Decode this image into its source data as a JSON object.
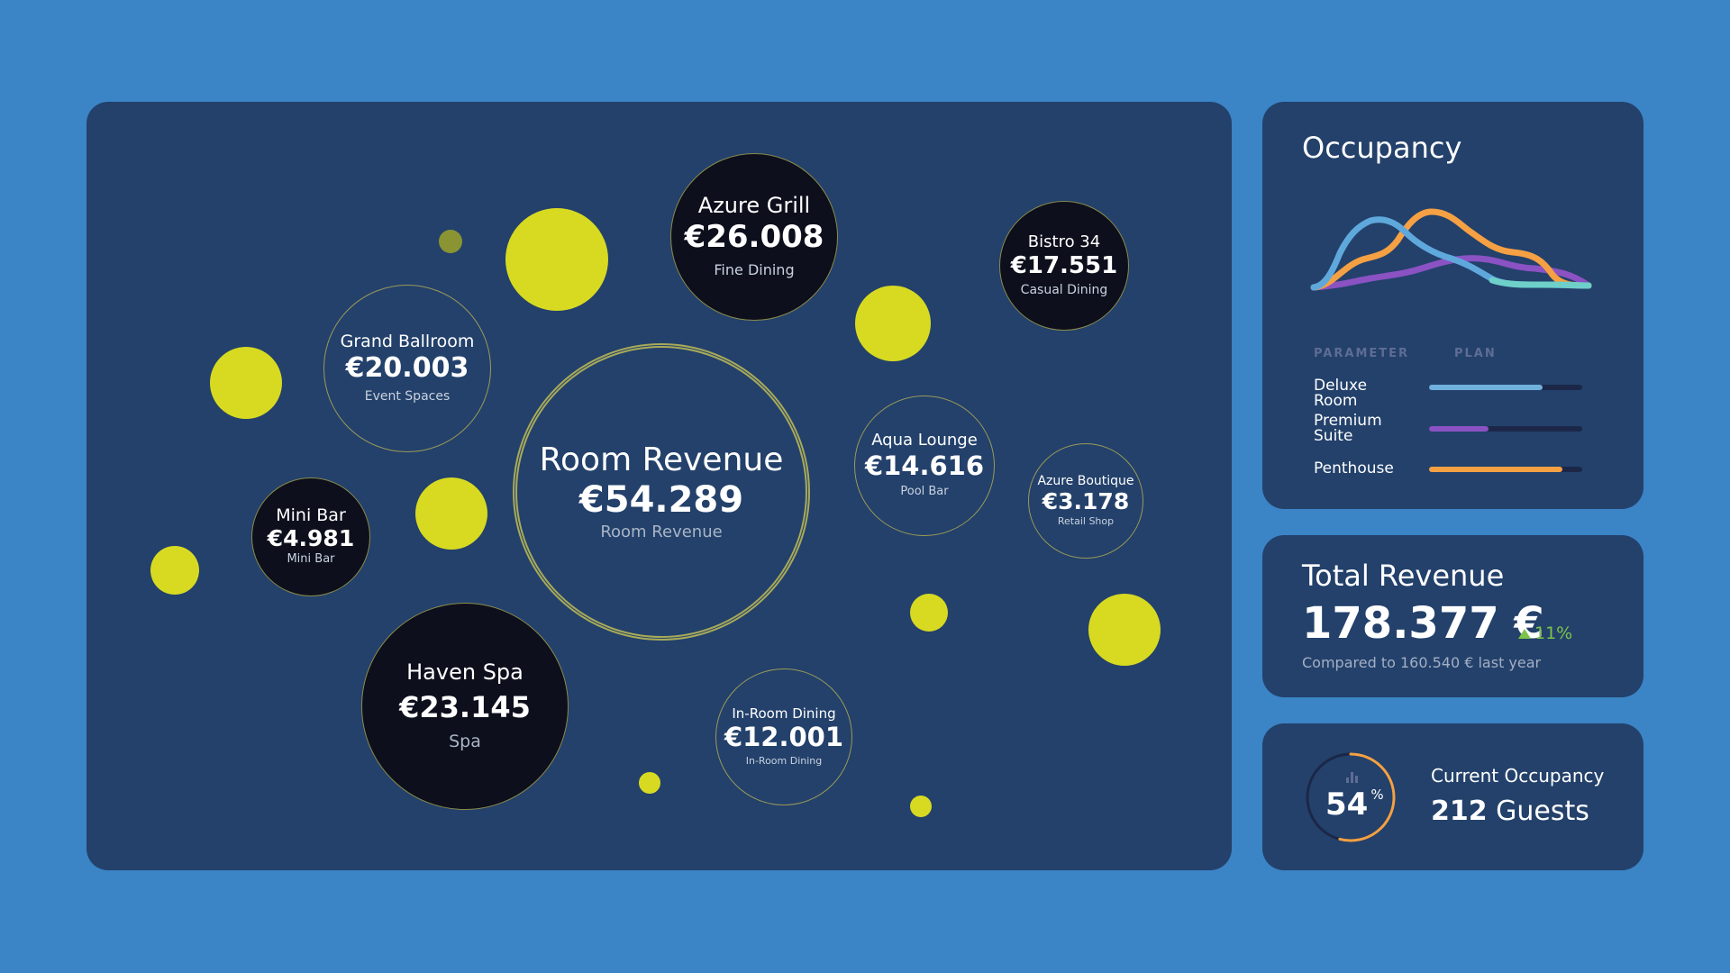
{
  "bubbles": {
    "room_revenue": {
      "name": "Room Revenue",
      "value": "€54.289",
      "category": "Room Revenue"
    },
    "azure_grill": {
      "name": "Azure Grill",
      "value": "€26.008",
      "category": "Fine Dining"
    },
    "bistro_34": {
      "name": "Bistro 34",
      "value": "€17.551",
      "category": "Casual Dining"
    },
    "grand_ballroom": {
      "name": "Grand Ballroom",
      "value": "€20.003",
      "category": "Event Spaces"
    },
    "aqua_lounge": {
      "name": "Aqua Lounge",
      "value": "€14.616",
      "category": "Pool Bar"
    },
    "azure_boutique": {
      "name": "Azure Boutique",
      "value": "€3.178",
      "category": "Retail Shop"
    },
    "mini_bar": {
      "name": "Mini Bar",
      "value": "€4.981",
      "category": "Mini Bar"
    },
    "haven_spa": {
      "name": "Haven Spa",
      "value": "€23.145",
      "category": "Spa"
    },
    "in_room_dining": {
      "name": "In-Room Dining",
      "value": "€12.001",
      "category": "In-Room Dining"
    }
  },
  "occupancy": {
    "title": "Occupancy",
    "col_parameter": "PARAMETER",
    "col_plan": "PLAN",
    "rows": [
      {
        "label": "Deluxe Room",
        "plan_fraction": 0.74,
        "color": "#6fb0dc"
      },
      {
        "label": "Premium Suite",
        "plan_fraction": 0.39,
        "color": "#8a52c2"
      },
      {
        "label": "Penthouse",
        "plan_fraction": 0.87,
        "color": "#f5a043"
      }
    ],
    "series_colors": [
      "#5fa8dc",
      "#f5a043",
      "#8a52c2",
      "#6ed0c8"
    ]
  },
  "total_revenue": {
    "title": "Total Revenue",
    "value": "178.377 €",
    "change": "11%",
    "change_color": "#7cc44a",
    "comparison": "Compared to 160.540 € last year"
  },
  "current_occupancy": {
    "percent_value": 54,
    "percent_number": "54",
    "percent_sign": "%",
    "title": "Current Occupancy",
    "guests_number": "212",
    "guests_word": "Guests",
    "ring_color": "#f5a043"
  },
  "colors": {
    "background": "#3b84c6",
    "panel": "#23416b",
    "accent_yellow": "#d8da22"
  }
}
